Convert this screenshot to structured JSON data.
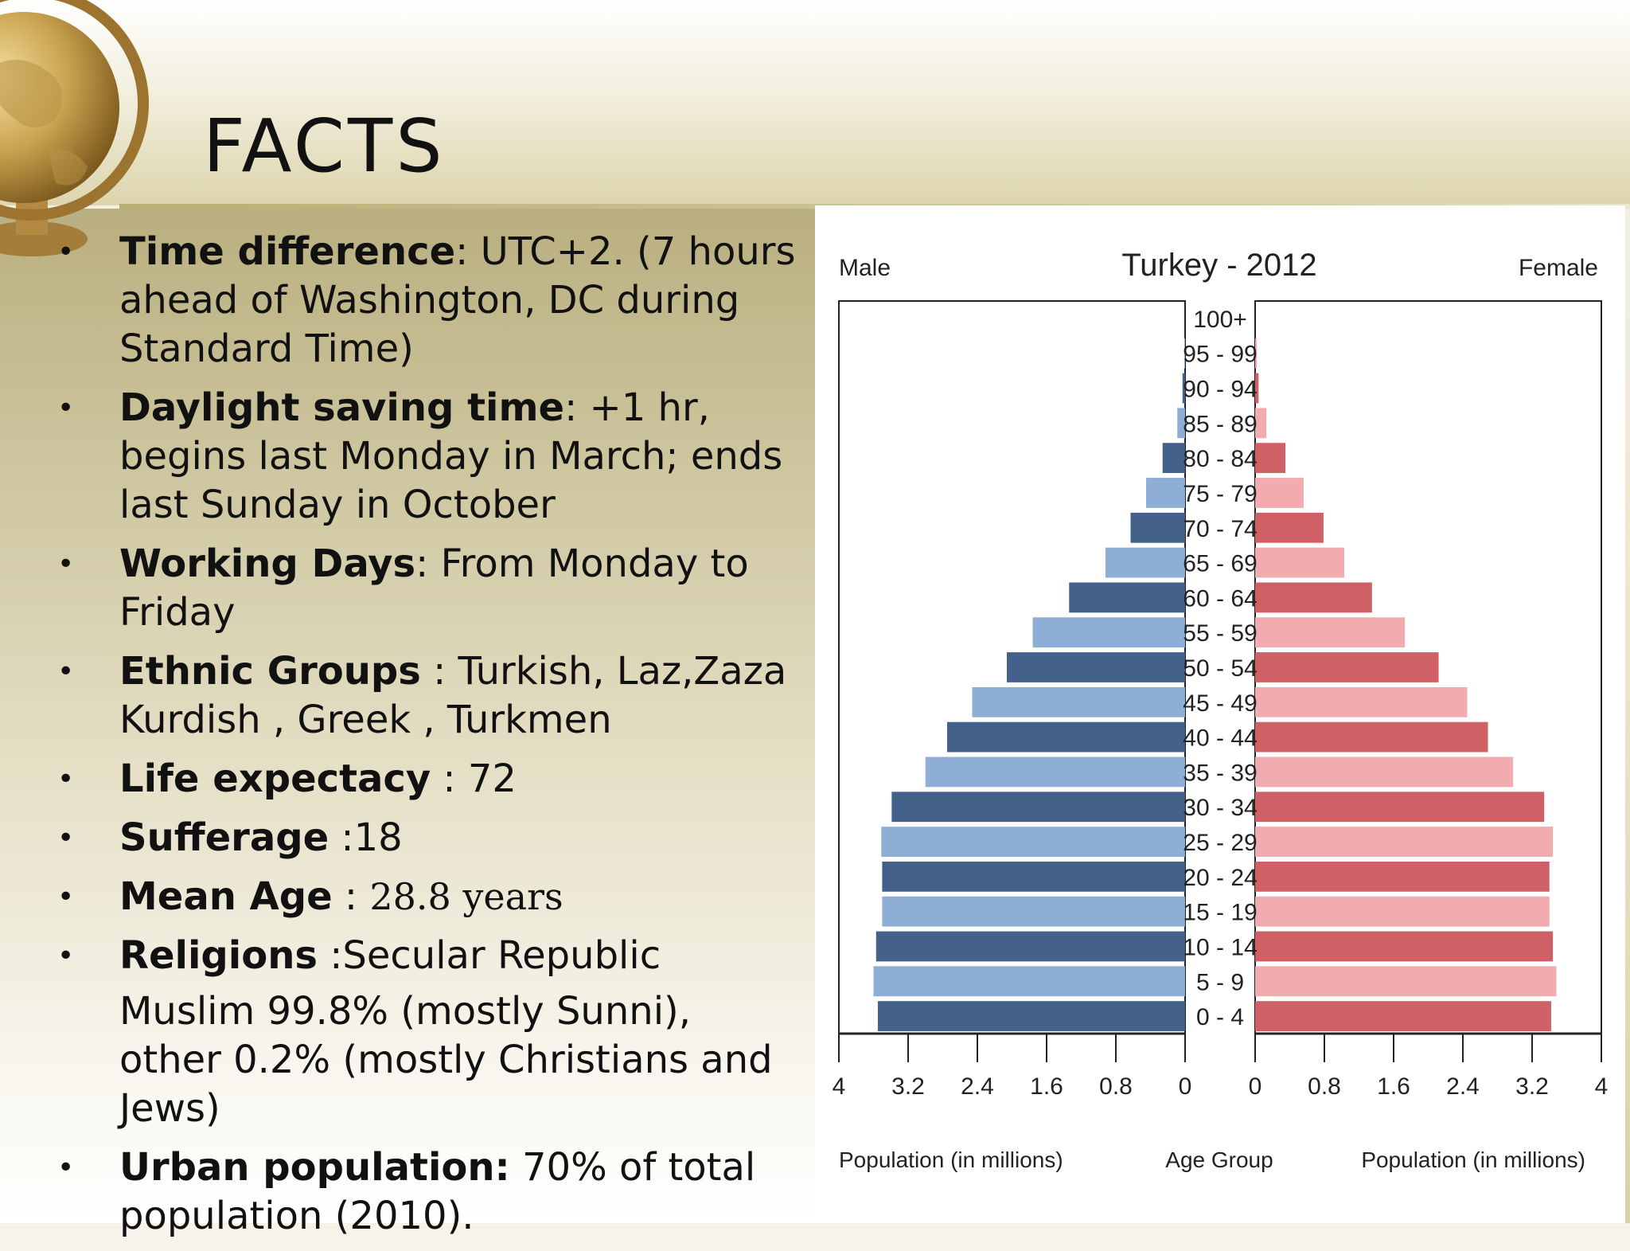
{
  "slide": {
    "title": "FACTS",
    "facts": [
      {
        "label": "Time difference",
        "sep": ": ",
        "text": "UTC+2.  (7 hours ahead of Washington, DC during Standard Time)"
      },
      {
        "label": "Daylight saving time",
        "sep": ": ",
        "text": "+1 hr, begins last Monday in March; ends last Sunday in October"
      },
      {
        "label": "Working Days",
        "sep": ": ",
        "text": "From Monday to Friday"
      },
      {
        "label": "Ethnic  Groups",
        "sep": " : ",
        "text": "Turkish, Laz,Zaza Kurdish , Greek , Turkmen"
      },
      {
        "label": "Life expectacy",
        "sep": " : ",
        "text": "72"
      },
      {
        "label": "Sufferage",
        "sep": " :",
        "text": "18"
      },
      {
        "label": "Mean Age",
        "sep": " : ",
        "text": "28.8 years"
      },
      {
        "label": "Religions",
        "sep": " :",
        "text": "Secular Republic"
      },
      {
        "label": "Urban population:",
        "sep": " ",
        "text": "70% of total population (2010)."
      }
    ],
    "religion_detail": "Muslim 99.8% (mostly Sunni), other 0.2% (mostly Christians and Jews)",
    "bullet": "•"
  },
  "colors": {
    "male_dark": "#44618c",
    "male_light": "#8eaed6",
    "female_dark": "#cf6166",
    "female_light": "#f2abae"
  },
  "chart_data": {
    "type": "bar",
    "title": "Turkey - 2012",
    "left_label": "Male",
    "right_label": "Female",
    "xlabel_left": "Population (in millions)",
    "xlabel_center": "Age Group",
    "xlabel_right": "Population (in millions)",
    "xlim": [
      0,
      4
    ],
    "ticks": [
      "4",
      "3.2",
      "2.4",
      "1.6",
      "0.8",
      "0"
    ],
    "ticks_right": [
      "0",
      "0.8",
      "1.6",
      "2.4",
      "3.2",
      "4"
    ],
    "categories": [
      "100+",
      "95 - 99",
      "90 - 94",
      "85 - 89",
      "80 - 84",
      "75 - 79",
      "70 - 74",
      "65 - 69",
      "60 - 64",
      "55 - 59",
      "50 - 54",
      "45 - 49",
      "40 - 44",
      "35 - 39",
      "30 - 34",
      "25 - 29",
      "20 - 24",
      "15 - 19",
      "10 - 14",
      "5 - 9",
      "0 - 4"
    ],
    "series": [
      {
        "name": "Male",
        "values": [
          0.0,
          0.01,
          0.03,
          0.09,
          0.26,
          0.45,
          0.63,
          0.92,
          1.34,
          1.76,
          2.06,
          2.46,
          2.75,
          3.0,
          3.39,
          3.51,
          3.5,
          3.5,
          3.57,
          3.6,
          3.55
        ]
      },
      {
        "name": "Female",
        "values": [
          0.0,
          0.02,
          0.04,
          0.13,
          0.35,
          0.56,
          0.79,
          1.03,
          1.35,
          1.73,
          2.12,
          2.45,
          2.69,
          2.98,
          3.34,
          3.44,
          3.4,
          3.4,
          3.44,
          3.48,
          3.42
        ]
      }
    ]
  }
}
